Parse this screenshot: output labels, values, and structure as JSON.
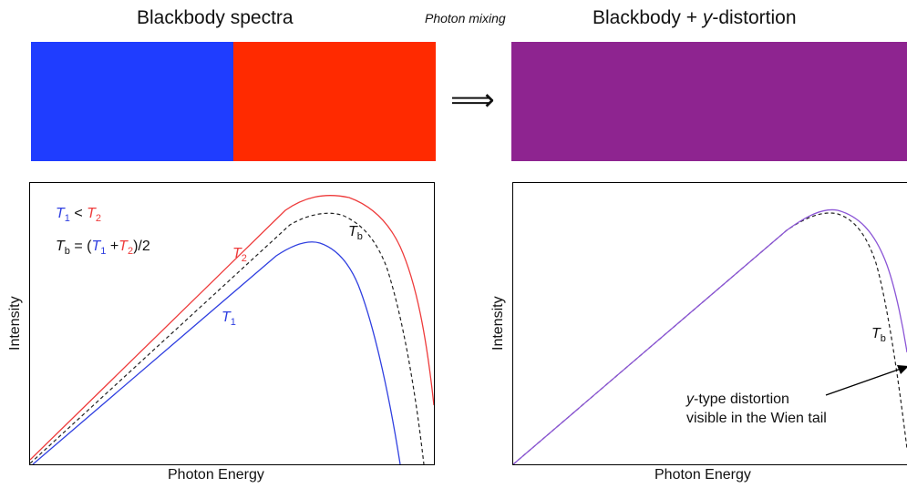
{
  "left": {
    "title": "Blackbody spectra",
    "swatch_colors": [
      "#1f3dff",
      "#ff2a00"
    ],
    "legend": {
      "line1": {
        "t1_main": "T",
        "t1_sub": "1",
        "op": " < ",
        "t2_main": "T",
        "t2_sub": "2"
      },
      "line2": {
        "tb_main": "T",
        "tb_sub": "b",
        "eq": " = (",
        "t1_main": "T",
        "t1_sub": "1",
        "plus": " +",
        "t2_main": "T",
        "t2_sub": "2",
        "close": ")/2"
      }
    },
    "curve_labels": {
      "t2": {
        "main": "T",
        "sub": "2"
      },
      "tb": {
        "main": "T",
        "sub": "b"
      },
      "t1": {
        "main": "T",
        "sub": "1"
      }
    },
    "xlabel": "Photon Energy",
    "ylabel": "Intensity"
  },
  "middle": {
    "label": "Photon mixing",
    "arrow": "⟹"
  },
  "right": {
    "title_prefix": "Blackbody + ",
    "title_italic": "y",
    "title_suffix": "-distortion",
    "swatch_color": "#8e2490",
    "curve_labels": {
      "tb": {
        "main": "T",
        "sub": "b"
      }
    },
    "annotation_italic": "y",
    "annotation_line1": "-type distortion",
    "annotation_line2": "visible in the Wien tail",
    "xlabel": "Photon Energy",
    "ylabel": "Intensity"
  },
  "colors": {
    "t1": "#2f3fe0",
    "t2": "#ee3b3b",
    "tb": "#222222",
    "distorted": "#8b55d6"
  }
}
